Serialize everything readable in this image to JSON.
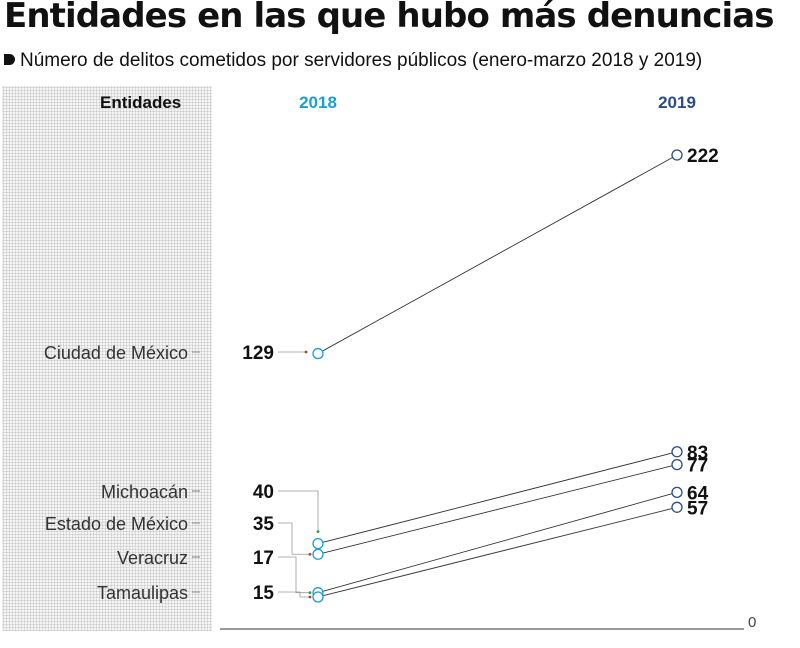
{
  "title": "Entidades en las que hubo más denuncias",
  "subtitle": "Número de delitos cometidos por servidores públicos (enero-marzo 2018 y 2019)",
  "colors": {
    "year_2018": "#1a9ed4",
    "year_2019": "#2b4b8c",
    "connector_green": "#2e9e4f",
    "connector_red": "#c0392b"
  },
  "chart_data": {
    "type": "slope",
    "column_headers": {
      "entities": "Entidades",
      "start": "2018",
      "end": "2019"
    },
    "x": [
      "2018",
      "2019"
    ],
    "series": [
      {
        "name": "Ciudad de México",
        "values": [
          129,
          222
        ]
      },
      {
        "name": "Michoacán",
        "values": [
          40,
          83
        ]
      },
      {
        "name": "Estado de México",
        "values": [
          35,
          77
        ]
      },
      {
        "name": "Veracruz",
        "values": [
          17,
          64
        ]
      },
      {
        "name": "Tamaulipas",
        "values": [
          15,
          57
        ]
      }
    ],
    "ylim": [
      0,
      222
    ],
    "baseline_label": "0",
    "grid": false
  }
}
